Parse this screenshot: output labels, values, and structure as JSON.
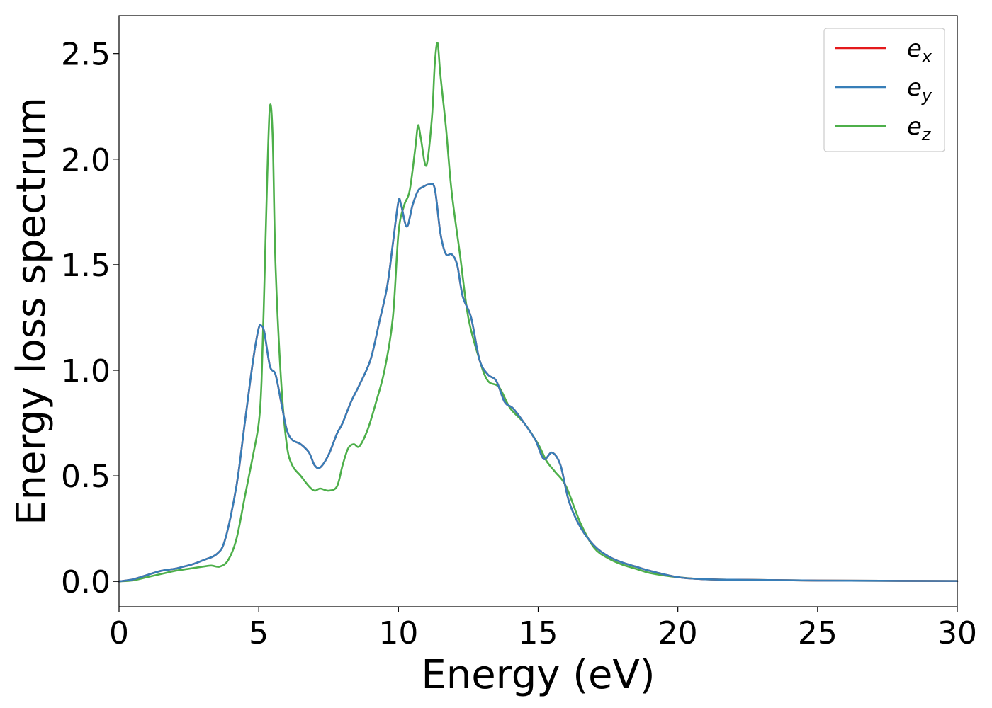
{
  "chart_data": {
    "type": "line",
    "xlabel": "Energy (eV)",
    "ylabel": "Energy loss spectrum",
    "xlim": [
      0,
      30
    ],
    "ylim": [
      -0.12,
      2.68
    ],
    "xticks": [
      0,
      5,
      10,
      15,
      20,
      25,
      30
    ],
    "yticks": [
      0.0,
      0.5,
      1.0,
      1.5,
      2.0,
      2.5
    ],
    "xtick_labels": [
      "0",
      "5",
      "10",
      "15",
      "20",
      "25",
      "30"
    ],
    "ytick_labels": [
      "0.0",
      "0.5",
      "1.0",
      "1.5",
      "2.0",
      "2.5"
    ],
    "grid": false,
    "legend_position": "top-right",
    "series": [
      {
        "name": "e_x",
        "label_base": "e",
        "label_sub": "x",
        "color": "#e41a1c",
        "x": [
          0,
          0.5,
          1,
          1.5,
          2,
          2.3,
          2.6,
          3,
          3.5,
          3.8,
          4.2,
          4.5,
          4.8,
          5,
          5.1,
          5.2,
          5.4,
          5.6,
          5.8,
          6,
          6.2,
          6.5,
          6.8,
          7,
          7.2,
          7.5,
          7.8,
          8,
          8.3,
          8.6,
          9,
          9.3,
          9.6,
          9.8,
          10,
          10.1,
          10.3,
          10.5,
          10.7,
          10.9,
          11.1,
          11.3,
          11.5,
          11.7,
          11.9,
          12.1,
          12.3,
          12.6,
          12.9,
          13.2,
          13.5,
          13.8,
          14.1,
          14.5,
          14.9,
          15.2,
          15.5,
          15.8,
          16.1,
          16.5,
          17,
          17.5,
          18,
          18.5,
          19,
          20,
          21,
          22,
          25,
          30
        ],
        "y": [
          0,
          0.01,
          0.03,
          0.05,
          0.06,
          0.07,
          0.08,
          0.1,
          0.13,
          0.2,
          0.45,
          0.75,
          1.05,
          1.2,
          1.21,
          1.18,
          1.02,
          0.98,
          0.85,
          0.72,
          0.67,
          0.65,
          0.61,
          0.55,
          0.54,
          0.6,
          0.7,
          0.75,
          0.85,
          0.93,
          1.05,
          1.22,
          1.4,
          1.6,
          1.8,
          1.78,
          1.68,
          1.78,
          1.85,
          1.87,
          1.88,
          1.86,
          1.65,
          1.55,
          1.55,
          1.5,
          1.35,
          1.25,
          1.05,
          0.98,
          0.95,
          0.85,
          0.82,
          0.75,
          0.67,
          0.58,
          0.61,
          0.55,
          0.38,
          0.26,
          0.17,
          0.12,
          0.09,
          0.07,
          0.05,
          0.02,
          0.01,
          0.008,
          0.004,
          0.002
        ]
      },
      {
        "name": "e_y",
        "label_base": "e",
        "label_sub": "y",
        "color": "#377eb8",
        "x": [
          0,
          0.5,
          1,
          1.5,
          2,
          2.3,
          2.6,
          3,
          3.5,
          3.8,
          4.2,
          4.5,
          4.8,
          5,
          5.1,
          5.2,
          5.4,
          5.6,
          5.8,
          6,
          6.2,
          6.5,
          6.8,
          7,
          7.2,
          7.5,
          7.8,
          8,
          8.3,
          8.6,
          9,
          9.3,
          9.6,
          9.8,
          10,
          10.1,
          10.3,
          10.5,
          10.7,
          10.9,
          11.1,
          11.3,
          11.5,
          11.7,
          11.9,
          12.1,
          12.3,
          12.6,
          12.9,
          13.2,
          13.5,
          13.8,
          14.1,
          14.5,
          14.9,
          15.2,
          15.5,
          15.8,
          16.1,
          16.5,
          17,
          17.5,
          18,
          18.5,
          19,
          20,
          21,
          22,
          25,
          30
        ],
        "y": [
          0,
          0.01,
          0.03,
          0.05,
          0.06,
          0.07,
          0.08,
          0.1,
          0.13,
          0.2,
          0.45,
          0.75,
          1.05,
          1.2,
          1.21,
          1.18,
          1.02,
          0.98,
          0.85,
          0.72,
          0.67,
          0.65,
          0.61,
          0.55,
          0.54,
          0.6,
          0.7,
          0.75,
          0.85,
          0.93,
          1.05,
          1.22,
          1.4,
          1.6,
          1.8,
          1.78,
          1.68,
          1.78,
          1.85,
          1.87,
          1.88,
          1.86,
          1.65,
          1.55,
          1.55,
          1.5,
          1.35,
          1.25,
          1.05,
          0.98,
          0.95,
          0.85,
          0.82,
          0.75,
          0.67,
          0.58,
          0.61,
          0.55,
          0.38,
          0.26,
          0.17,
          0.12,
          0.09,
          0.07,
          0.05,
          0.02,
          0.01,
          0.008,
          0.004,
          0.002
        ]
      },
      {
        "name": "e_z",
        "label_base": "e",
        "label_sub": "z",
        "color": "#4daf4a",
        "x": [
          0,
          0.5,
          1,
          1.5,
          2,
          2.5,
          3,
          3.3,
          3.6,
          3.9,
          4.2,
          4.5,
          4.8,
          5,
          5.1,
          5.2,
          5.3,
          5.4,
          5.5,
          5.6,
          5.8,
          6,
          6.2,
          6.5,
          6.8,
          7,
          7.2,
          7.5,
          7.8,
          8,
          8.2,
          8.4,
          8.6,
          8.9,
          9.2,
          9.5,
          9.8,
          10,
          10.2,
          10.4,
          10.6,
          10.7,
          10.8,
          11,
          11.2,
          11.3,
          11.4,
          11.5,
          11.7,
          11.9,
          12.2,
          12.5,
          12.9,
          13.2,
          13.6,
          14,
          14.5,
          15,
          15.3,
          15.6,
          16,
          16.5,
          17,
          17.5,
          18,
          18.5,
          19,
          20,
          21,
          22,
          25,
          30
        ],
        "y": [
          0,
          0.005,
          0.02,
          0.035,
          0.05,
          0.06,
          0.07,
          0.075,
          0.07,
          0.1,
          0.2,
          0.4,
          0.6,
          0.75,
          0.95,
          1.4,
          1.9,
          2.25,
          2.1,
          1.5,
          0.95,
          0.65,
          0.55,
          0.5,
          0.45,
          0.43,
          0.44,
          0.43,
          0.45,
          0.55,
          0.63,
          0.65,
          0.64,
          0.72,
          0.85,
          1.0,
          1.25,
          1.65,
          1.78,
          1.85,
          2.05,
          2.16,
          2.1,
          1.97,
          2.2,
          2.45,
          2.55,
          2.4,
          2.15,
          1.85,
          1.55,
          1.25,
          1.05,
          0.95,
          0.92,
          0.82,
          0.75,
          0.65,
          0.57,
          0.52,
          0.45,
          0.28,
          0.16,
          0.11,
          0.08,
          0.06,
          0.04,
          0.02,
          0.01,
          0.008,
          0.004,
          0.002
        ]
      }
    ]
  }
}
